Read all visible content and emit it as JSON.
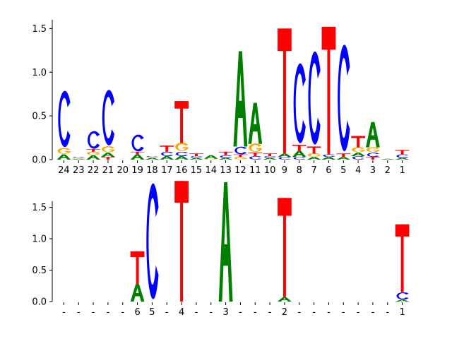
{
  "colors": {
    "A": "#008000",
    "C": "#0000ff",
    "G": "#ffa500",
    "T": "#ff0000"
  },
  "chart_data": [
    {
      "type": "sequence-logo",
      "ylim": [
        0,
        1.6
      ],
      "yticks": [
        "0.0",
        "0.5",
        "1.0",
        "1.5"
      ],
      "columns": [
        {
          "label": "24",
          "stack": [
            {
              "letter": "A",
              "value": 0.06
            },
            {
              "letter": "G",
              "value": 0.07
            },
            {
              "letter": "C",
              "value": 0.67
            }
          ]
        },
        {
          "label": "23",
          "stack": [
            {
              "letter": "A",
              "value": 0.01
            },
            {
              "letter": "G",
              "value": 0.01
            },
            {
              "letter": "C",
              "value": 0.01
            }
          ]
        },
        {
          "label": "22",
          "stack": [
            {
              "letter": "A",
              "value": 0.05
            },
            {
              "letter": "G",
              "value": 0.04
            },
            {
              "letter": "T",
              "value": 0.03
            },
            {
              "letter": "C",
              "value": 0.21
            }
          ]
        },
        {
          "label": "21",
          "stack": [
            {
              "letter": "T",
              "value": 0.03
            },
            {
              "letter": "A",
              "value": 0.05
            },
            {
              "letter": "G",
              "value": 0.07
            },
            {
              "letter": "C",
              "value": 0.66
            }
          ]
        },
        {
          "label": "20",
          "stack": []
        },
        {
          "label": "19",
          "stack": [
            {
              "letter": "A",
              "value": 0.06
            },
            {
              "letter": "T",
              "value": 0.03
            },
            {
              "letter": "C",
              "value": 0.2
            }
          ]
        },
        {
          "label": "18",
          "stack": [
            {
              "letter": "A",
              "value": 0.02
            },
            {
              "letter": "G",
              "value": 0.01
            },
            {
              "letter": "C",
              "value": 0.01
            }
          ]
        },
        {
          "label": "17",
          "stack": [
            {
              "letter": "A",
              "value": 0.04
            },
            {
              "letter": "C",
              "value": 0.05
            },
            {
              "letter": "T",
              "value": 0.07
            }
          ]
        },
        {
          "label": "16",
          "stack": [
            {
              "letter": "A",
              "value": 0.04
            },
            {
              "letter": "C",
              "value": 0.05
            },
            {
              "letter": "G",
              "value": 0.1
            },
            {
              "letter": "T",
              "value": 0.48
            }
          ]
        },
        {
          "label": "15",
          "stack": [
            {
              "letter": "A",
              "value": 0.02
            },
            {
              "letter": "C",
              "value": 0.02
            },
            {
              "letter": "T",
              "value": 0.03
            }
          ]
        },
        {
          "label": "14",
          "stack": [
            {
              "letter": "G",
              "value": 0.01
            },
            {
              "letter": "A",
              "value": 0.04
            }
          ]
        },
        {
          "label": "13",
          "stack": [
            {
              "letter": "A",
              "value": 0.02
            },
            {
              "letter": "C",
              "value": 0.03
            },
            {
              "letter": "T",
              "value": 0.04
            }
          ]
        },
        {
          "label": "12",
          "stack": [
            {
              "letter": "G",
              "value": 0.03
            },
            {
              "letter": "T",
              "value": 0.03
            },
            {
              "letter": "C",
              "value": 0.09
            },
            {
              "letter": "A",
              "value": 1.09
            }
          ]
        },
        {
          "label": "11",
          "stack": [
            {
              "letter": "C",
              "value": 0.04
            },
            {
              "letter": "T",
              "value": 0.04
            },
            {
              "letter": "G",
              "value": 0.1
            },
            {
              "letter": "A",
              "value": 0.47
            }
          ]
        },
        {
          "label": "10",
          "stack": [
            {
              "letter": "A",
              "value": 0.02
            },
            {
              "letter": "C",
              "value": 0.02
            },
            {
              "letter": "T",
              "value": 0.03
            }
          ]
        },
        {
          "label": "9",
          "stack": [
            {
              "letter": "C",
              "value": 0.03
            },
            {
              "letter": "A",
              "value": 0.04
            },
            {
              "letter": "T",
              "value": 1.43
            }
          ]
        },
        {
          "label": "8",
          "stack": [
            {
              "letter": "C",
              "value": 0.03
            },
            {
              "letter": "A",
              "value": 0.07
            },
            {
              "letter": "T",
              "value": 0.07
            },
            {
              "letter": "C",
              "value": 0.95
            }
          ]
        },
        {
          "label": "7",
          "stack": [
            {
              "letter": "A",
              "value": 0.03
            },
            {
              "letter": "G",
              "value": 0.04
            },
            {
              "letter": "T",
              "value": 0.08
            },
            {
              "letter": "C",
              "value": 1.11
            }
          ]
        },
        {
          "label": "6",
          "stack": [
            {
              "letter": "A",
              "value": 0.03
            },
            {
              "letter": "C",
              "value": 0.03
            },
            {
              "letter": "T",
              "value": 1.46
            }
          ]
        },
        {
          "label": "5",
          "stack": [
            {
              "letter": "A",
              "value": 0.03
            },
            {
              "letter": "T",
              "value": 0.04
            },
            {
              "letter": "C",
              "value": 1.27
            }
          ]
        },
        {
          "label": "4",
          "stack": [
            {
              "letter": "C",
              "value": 0.04
            },
            {
              "letter": "A",
              "value": 0.04
            },
            {
              "letter": "G",
              "value": 0.06
            },
            {
              "letter": "T",
              "value": 0.13
            }
          ]
        },
        {
          "label": "3",
          "stack": [
            {
              "letter": "T",
              "value": 0.03
            },
            {
              "letter": "C",
              "value": 0.05
            },
            {
              "letter": "G",
              "value": 0.06
            },
            {
              "letter": "A",
              "value": 0.29
            }
          ]
        },
        {
          "label": "2",
          "stack": [
            {
              "letter": "A",
              "value": 0.01
            }
          ]
        },
        {
          "label": "1",
          "stack": [
            {
              "letter": "A",
              "value": 0.02
            },
            {
              "letter": "C",
              "value": 0.04
            },
            {
              "letter": "T",
              "value": 0.05
            }
          ]
        }
      ]
    },
    {
      "type": "sequence-logo",
      "ylim": [
        0,
        1.9
      ],
      "yticks": [
        "0.0",
        "0.5",
        "1.0",
        "1.5"
      ],
      "columns": [
        {
          "label": "-",
          "stack": []
        },
        {
          "label": "-",
          "stack": []
        },
        {
          "label": "-",
          "stack": []
        },
        {
          "label": "-",
          "stack": []
        },
        {
          "label": "-",
          "stack": []
        },
        {
          "label": "6",
          "stack": [
            {
              "letter": "A",
              "value": 0.28
            },
            {
              "letter": "T",
              "value": 0.52
            }
          ]
        },
        {
          "label": "5",
          "stack": [
            {
              "letter": "C",
              "value": 1.92
            }
          ]
        },
        {
          "label": "-",
          "stack": []
        },
        {
          "label": "4",
          "stack": [
            {
              "letter": "T",
              "value": 1.92
            }
          ]
        },
        {
          "label": "-",
          "stack": []
        },
        {
          "label": "-",
          "stack": []
        },
        {
          "label": "3",
          "stack": [
            {
              "letter": "A",
              "value": 1.9
            }
          ]
        },
        {
          "label": "-",
          "stack": []
        },
        {
          "label": "-",
          "stack": []
        },
        {
          "label": "-",
          "stack": []
        },
        {
          "label": "2",
          "stack": [
            {
              "letter": "A",
              "value": 0.07
            },
            {
              "letter": "T",
              "value": 1.58
            }
          ]
        },
        {
          "label": "-",
          "stack": []
        },
        {
          "label": "-",
          "stack": []
        },
        {
          "label": "-",
          "stack": []
        },
        {
          "label": "-",
          "stack": []
        },
        {
          "label": "-",
          "stack": []
        },
        {
          "label": "-",
          "stack": []
        },
        {
          "label": "-",
          "stack": []
        },
        {
          "label": "1",
          "stack": [
            {
              "letter": "A",
              "value": 0.03
            },
            {
              "letter": "C",
              "value": 0.12
            },
            {
              "letter": "T",
              "value": 1.08
            }
          ]
        }
      ]
    }
  ]
}
